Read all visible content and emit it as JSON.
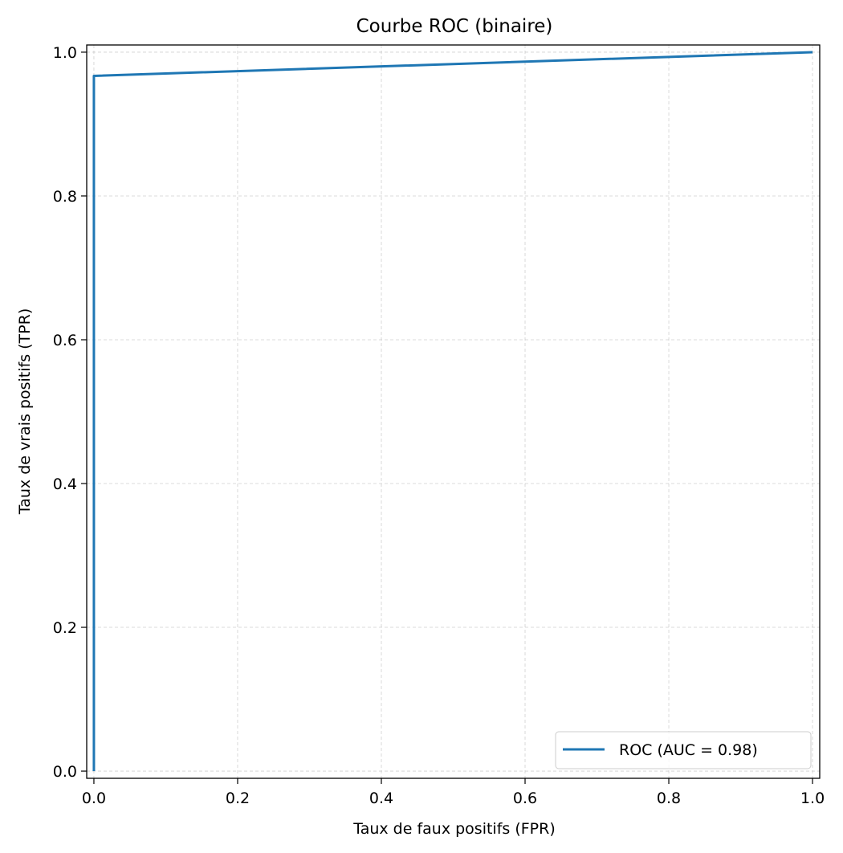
{
  "chart_data": {
    "type": "line",
    "title": "Courbe ROC (binaire)",
    "xlabel": "Taux de faux positifs (FPR)",
    "ylabel": "Taux de vrais positifs (TPR)",
    "xlim": [
      -0.01,
      1.01
    ],
    "ylim": [
      -0.01,
      1.01
    ],
    "xticks": [
      "0.0",
      "0.2",
      "0.4",
      "0.6",
      "0.8",
      "1.0"
    ],
    "yticks": [
      "0.0",
      "0.2",
      "0.4",
      "0.6",
      "0.8",
      "1.0"
    ],
    "grid": true,
    "legend_position": "lower-right",
    "series": [
      {
        "name": "ROC (AUC = 0.98)",
        "color": "#1f77b4",
        "x": [
          0.0,
          0.0,
          1.0
        ],
        "y": [
          0.0,
          0.967,
          1.0
        ]
      }
    ]
  }
}
